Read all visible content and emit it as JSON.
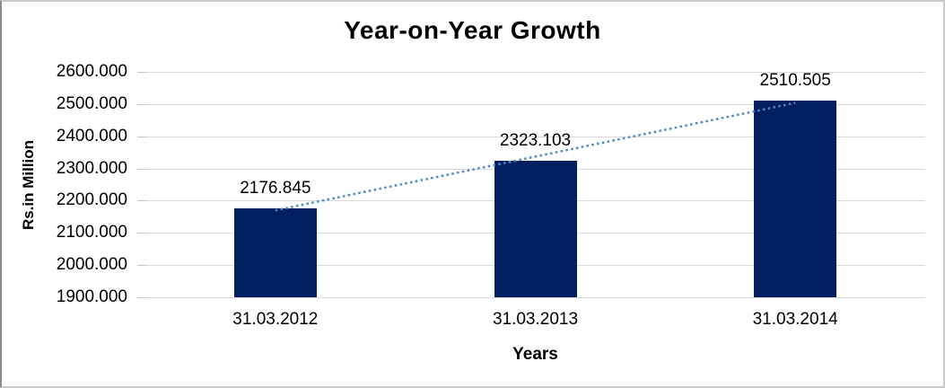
{
  "chart_data": {
    "type": "bar",
    "title": "Year-on-Year Growth",
    "categories": [
      "31.03.2012",
      "31.03.2013",
      "31.03.2014"
    ],
    "values": [
      2176.845,
      2323.103,
      2510.505
    ],
    "data_labels": [
      "2176.845",
      "2323.103",
      "2510.505"
    ],
    "xlabel": "Years",
    "ylabel": "Rs.in Million",
    "ylim": [
      1900,
      2600
    ],
    "ytick_step": 100,
    "ytick_labels": [
      "2600.000",
      "2500.000",
      "2400.000",
      "2300.000",
      "2200.000",
      "2100.000",
      "2000.000",
      "1900.000"
    ],
    "grid": true,
    "legend": "none",
    "bar_color": "#022060",
    "grid_color": "#d9d9d9",
    "trendline": {
      "type": "linear",
      "style": "dotted",
      "color": "#4e86c8"
    }
  }
}
